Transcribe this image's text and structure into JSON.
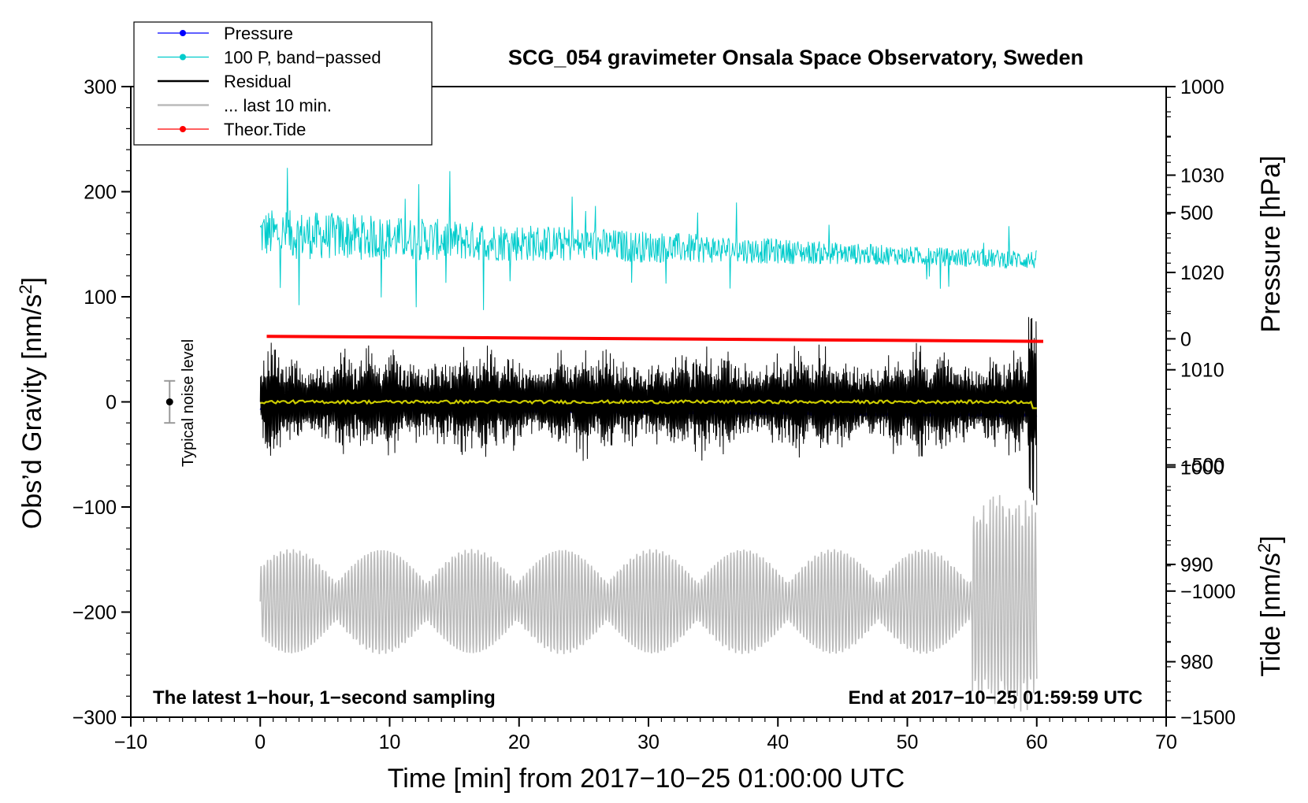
{
  "chart_data": {
    "type": "line",
    "title": "SCG_054 gravimeter Onsala Space Observatory, Sweden",
    "xlabel": "Time [min] from 2017−10−25 01:00:00 UTC",
    "ylabel_left_main": "Obs’d Gravity [nm/s",
    "ylabel_left_sup": "2",
    "ylabel_left_end": "]",
    "ylabel_right_top": "Pressure [hPa]",
    "ylabel_right_bottom_main": "Tide [nm/s",
    "ylabel_right_bottom_sup": "2",
    "ylabel_right_bottom_end": "]",
    "xlim": [
      -10,
      70
    ],
    "ylim_left": [
      -300,
      300
    ],
    "pressure_ylim": [
      974.3,
      1039.1
    ],
    "tide_ylim": [
      -1500,
      1000
    ],
    "xticks": [
      "−10",
      "0",
      "10",
      "20",
      "30",
      "40",
      "50",
      "60",
      "70"
    ],
    "xtick_values": [
      -10,
      0,
      10,
      20,
      30,
      40,
      50,
      60,
      70
    ],
    "yticks_left": [
      "300",
      "200",
      "100",
      "0",
      "−100",
      "−200",
      "−300"
    ],
    "ytick_left_values": [
      300,
      200,
      100,
      0,
      -100,
      -200,
      -300
    ],
    "yticks_pressure": [
      "1030",
      "1020",
      "1010",
      "1000",
      "990",
      "980"
    ],
    "ytick_pressure_values": [
      1030,
      1020,
      1010,
      1000,
      990,
      980
    ],
    "yticks_tide": [
      "1000",
      "500",
      "0",
      "−500",
      "−1000",
      "−1500"
    ],
    "ytick_tide_values": [
      1000,
      500,
      0,
      -500,
      -1000,
      -1500
    ],
    "legend": [
      {
        "label": "Pressure",
        "color": "#0000ff",
        "marker": true
      },
      {
        "label": "100 P, band−passed",
        "color": "#00cccc",
        "marker": true
      },
      {
        "label": "Residual",
        "color": "#000000",
        "marker": false
      },
      {
        "label": "... last 10 min.",
        "color": "#bbbbbb",
        "marker": false
      },
      {
        "label": "Theor.Tide",
        "color": "#ff0000",
        "marker": true
      }
    ],
    "legend_position": "top-left",
    "annotations": {
      "bottom_left": "The latest 1−hour, 1−second sampling",
      "bottom_right": "End at 2017−10−25 01:59:59 UTC",
      "noise_label": "Typical noise level"
    },
    "noise_bar": {
      "x": -7,
      "center": 0,
      "half_range": 20
    },
    "series": [
      {
        "name": "Pressure",
        "axis": "pressure",
        "color": "#0000ff",
        "x_start": 0,
        "x_end": 60,
        "y_start": 1006.0,
        "y_end": 1005.3
      },
      {
        "name": "100 P, band−passed",
        "axis": "left",
        "color": "#00cccc",
        "x_start": 0,
        "x_end": 60,
        "mean_start": 160,
        "mean_end": 135,
        "amplitude_start": 40,
        "amplitude_end": 15
      },
      {
        "name": "Residual",
        "axis": "left",
        "color": "#000000",
        "x_start": 0,
        "x_end": 60,
        "mean": 0,
        "amplitude_typical": 60,
        "amplitude_max": 100
      },
      {
        "name": "Residual (smoothed)",
        "axis": "left",
        "color": "#cccc00",
        "x_start": 0,
        "x_end": 60,
        "mean": 0,
        "amplitude": 3
      },
      {
        "name": "... last 10 min.",
        "axis": "left",
        "color": "#bbbbbb",
        "x_start": 0,
        "x_end": 60,
        "mean": -190,
        "amplitude_typical": 50,
        "amplitude_max": 105
      },
      {
        "name": "Theor.Tide",
        "axis": "tide",
        "color": "#ff0000",
        "x_start": 0.5,
        "x_end": 60.5,
        "y_start": 10,
        "y_end": -10
      }
    ]
  }
}
